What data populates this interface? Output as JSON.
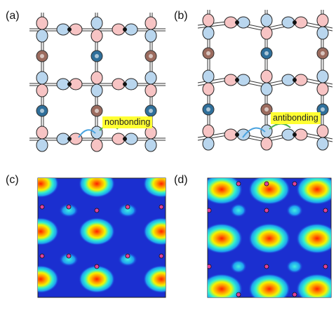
{
  "panels": {
    "a": {
      "label": "(a)",
      "annotation": "nonbonding"
    },
    "b": {
      "label": "(b)",
      "annotation": "antibonding"
    },
    "c": {
      "label": "(c)"
    },
    "d": {
      "label": "(d)"
    }
  },
  "colors": {
    "lobe_pink": "#f7c4c4",
    "lobe_blue": "#b9d6ee",
    "atom_blue": "#2f6f9a",
    "atom_brown": "#9b6b5e",
    "highlight": "#ffff33",
    "arc_green": "#4caf50",
    "arc_blue": "#4aa3df",
    "map_bg": "#1b2fd0"
  }
}
